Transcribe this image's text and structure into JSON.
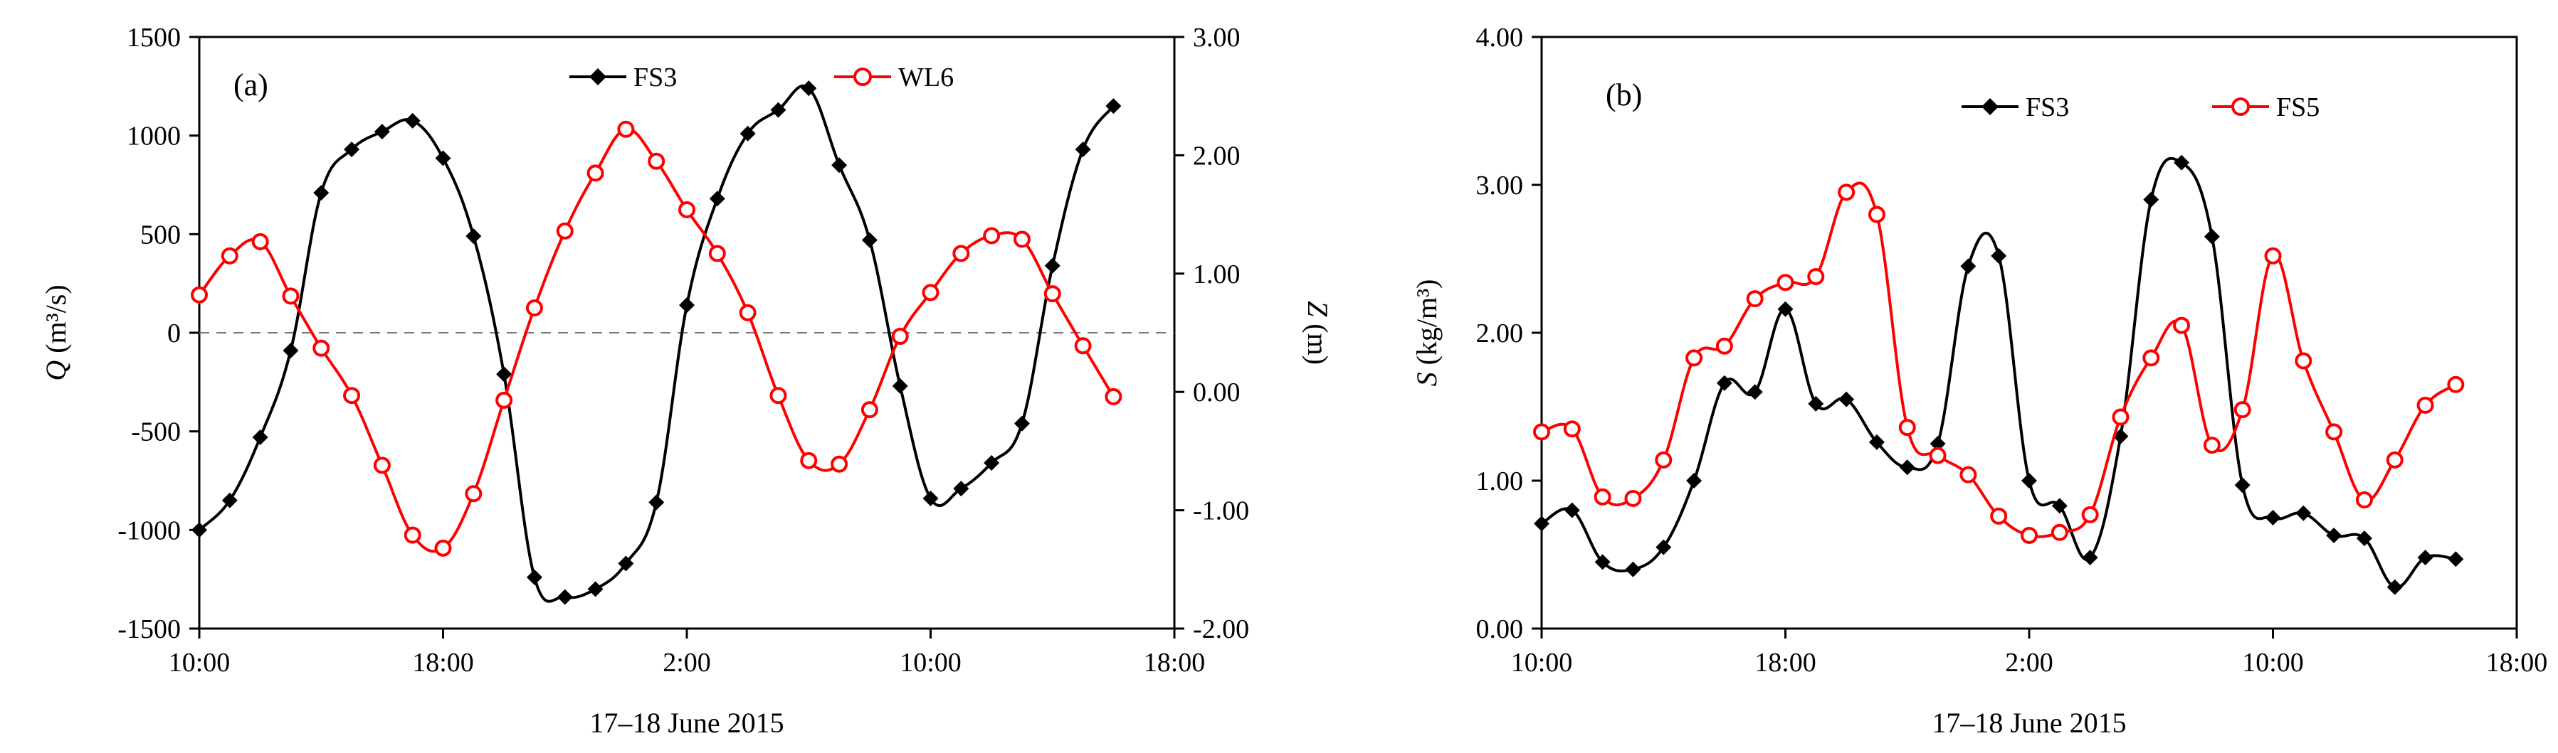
{
  "chart_data": [
    {
      "panel": "(a)",
      "type": "line",
      "xlabel": "17–18 June 2015",
      "x_tick_labels": [
        "10:00",
        "18:00",
        "2:00",
        "10:00",
        "18:00"
      ],
      "x_tick_hours": [
        0,
        8,
        16,
        24,
        32
      ],
      "xlim": [
        0,
        32
      ],
      "y_left": {
        "symbol": "Q",
        "unit": " (m³/s)",
        "ylim": [
          -1500,
          1500
        ],
        "ticks": [
          "-1500",
          "-1000",
          "-500",
          "0",
          "500",
          "1000",
          "1500"
        ],
        "tick_values": [
          -1500,
          -1000,
          -500,
          0,
          500,
          1000,
          1500
        ]
      },
      "y_right": {
        "symbol": "Z",
        "unit": " (m)",
        "ylim": [
          -2,
          3
        ],
        "ticks": [
          "-2.00",
          "-1.00",
          "0.00",
          "1.00",
          "2.00",
          "3.00"
        ],
        "tick_values": [
          -2,
          -1,
          0,
          1,
          2,
          3
        ]
      },
      "zero_line": 0,
      "series": [
        {
          "name": "FS3",
          "axis": "left",
          "color": "#000000",
          "marker": "diamond",
          "x": [
            0,
            1,
            2,
            3,
            4,
            5,
            6,
            7,
            8,
            9,
            10,
            11,
            12,
            13,
            14,
            15,
            16,
            17,
            18,
            19,
            20,
            21,
            22,
            23,
            24,
            25,
            26,
            27,
            28,
            29,
            30
          ],
          "y": [
            -1000,
            -850,
            -530,
            -90,
            710,
            930,
            1020,
            1075,
            885,
            490,
            -210,
            -1240,
            -1340,
            -1300,
            -1170,
            -860,
            140,
            680,
            1010,
            1130,
            1240,
            850,
            470,
            -270,
            -840,
            -790,
            -660,
            -460,
            340,
            930,
            1150
          ]
        },
        {
          "name": "WL6",
          "axis": "right",
          "color": "#ff0000",
          "marker": "circle",
          "x": [
            0,
            1,
            2,
            3,
            4,
            5,
            6,
            7,
            8,
            9,
            10,
            11,
            12,
            13,
            14,
            15,
            16,
            17,
            18,
            19,
            20,
            21,
            22,
            23,
            24,
            25,
            26,
            27,
            28,
            29,
            30
          ],
          "y": [
            0.82,
            1.15,
            1.27,
            0.81,
            0.37,
            -0.03,
            -0.62,
            -1.21,
            -1.32,
            -0.86,
            -0.07,
            0.71,
            1.36,
            1.85,
            2.22,
            1.95,
            1.54,
            1.17,
            0.67,
            -0.03,
            -0.58,
            -0.61,
            -0.15,
            0.47,
            0.84,
            1.17,
            1.32,
            1.29,
            0.83,
            0.39,
            -0.04
          ]
        }
      ]
    },
    {
      "panel": "(b)",
      "type": "line",
      "xlabel": "17–18 June 2015",
      "x_tick_labels": [
        "10:00",
        "18:00",
        "2:00",
        "10:00",
        "18:00"
      ],
      "x_tick_hours": [
        0,
        8,
        16,
        24,
        32
      ],
      "xlim": [
        0,
        32
      ],
      "y_left": {
        "symbol": "S",
        "unit": " (kg/m³)",
        "ylim": [
          0,
          4
        ],
        "ticks": [
          "0.00",
          "1.00",
          "2.00",
          "3.00",
          "4.00"
        ],
        "tick_values": [
          0,
          1,
          2,
          3,
          4
        ]
      },
      "series": [
        {
          "name": "FS3",
          "axis": "left",
          "color": "#000000",
          "marker": "diamond",
          "x": [
            0,
            1,
            2,
            3,
            4,
            5,
            6,
            7,
            8,
            9,
            10,
            11,
            12,
            13,
            14,
            15,
            16,
            17,
            18,
            19,
            20,
            21,
            22,
            23,
            24,
            25,
            26,
            27,
            28,
            29,
            30
          ],
          "y": [
            0.71,
            0.8,
            0.45,
            0.4,
            0.55,
            1.0,
            1.66,
            1.6,
            2.16,
            1.52,
            1.55,
            1.26,
            1.09,
            1.25,
            2.45,
            2.52,
            1.0,
            0.83,
            0.48,
            1.3,
            2.9,
            3.15,
            2.65,
            0.97,
            0.75,
            0.78,
            0.63,
            0.61,
            0.28,
            0.48,
            0.47
          ]
        },
        {
          "name": "FS5",
          "axis": "left",
          "color": "#ff0000",
          "marker": "circle",
          "x": [
            0,
            1,
            2,
            3,
            4,
            5,
            6,
            7,
            8,
            9,
            10,
            11,
            12,
            13,
            14,
            15,
            16,
            17,
            18,
            19,
            20,
            21,
            22,
            23,
            24,
            25,
            26,
            27,
            28,
            29,
            30
          ],
          "y": [
            1.33,
            1.35,
            0.89,
            0.88,
            1.14,
            1.83,
            1.91,
            2.23,
            2.34,
            2.38,
            2.95,
            2.8,
            1.36,
            1.17,
            1.04,
            0.76,
            0.63,
            0.65,
            0.77,
            1.43,
            1.83,
            2.05,
            1.24,
            1.48,
            2.52,
            1.81,
            1.33,
            0.87,
            1.14,
            1.51,
            1.65
          ]
        }
      ]
    }
  ]
}
